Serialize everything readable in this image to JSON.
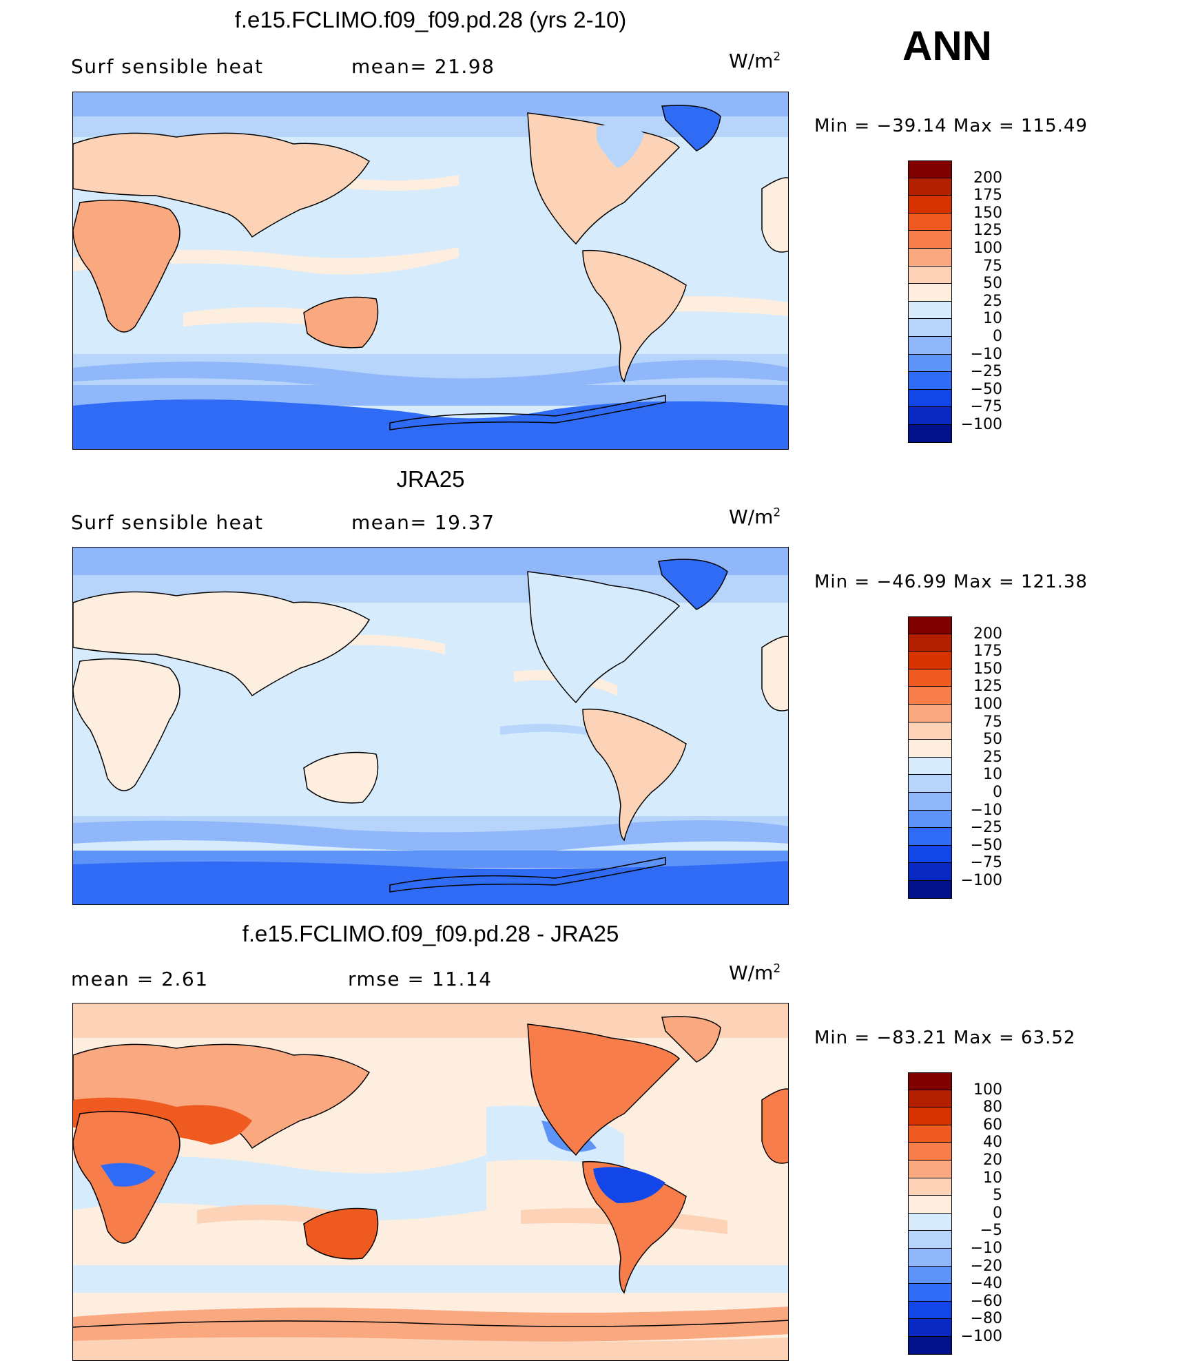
{
  "season": "ANN",
  "panels": [
    {
      "title": "f.e15.FCLIMO.f09_f09.pd.28 (yrs 2-10)",
      "variable": "Surf  sensible  heat",
      "stat": "mean=   21.98",
      "units": "W/m",
      "units_sup": "2",
      "minmax": "Min  =  −39.14  Max  =  115.49",
      "cbar_labels": [
        "200",
        "175",
        "150",
        "125",
        "100",
        "75",
        "50",
        "25",
        "10",
        "0",
        "−10",
        "−25",
        "−50",
        "−75",
        "−100"
      ]
    },
    {
      "title": "JRA25",
      "variable": "Surf  sensible  heat",
      "stat": "mean=   19.37",
      "units": "W/m",
      "units_sup": "2",
      "minmax": "Min  =  −46.99  Max  =  121.38",
      "cbar_labels": [
        "200",
        "175",
        "150",
        "125",
        "100",
        "75",
        "50",
        "25",
        "10",
        "0",
        "−10",
        "−25",
        "−50",
        "−75",
        "−100"
      ]
    },
    {
      "title": "f.e15.FCLIMO.f09_f09.pd.28 - JRA25",
      "variable": "mean  =     2.61",
      "stat": "rmse  =     11.14",
      "units": "W/m",
      "units_sup": "2",
      "minmax": "Min  =  −83.21  Max  =    63.52",
      "cbar_labels": [
        "100",
        "80",
        "60",
        "40",
        "20",
        "10",
        "5",
        "0",
        "−5",
        "−10",
        "−20",
        "−40",
        "−60",
        "−80",
        "−100"
      ]
    }
  ],
  "colors": {
    "cbar_top_to_bottom": [
      "#800000",
      "#b22000",
      "#d83400",
      "#ee5a20",
      "#f77d4a",
      "#f9a880",
      "#fcd3b6",
      "#fdeee0",
      "#d6ebfc",
      "#b7d5fb",
      "#8fb7fa",
      "#5e93f8",
      "#2f6bf5",
      "#1346e8",
      "#0a28c2",
      "#00118a"
    ],
    "ocean_base": "#d6ebfc",
    "coast": "#000000"
  }
}
